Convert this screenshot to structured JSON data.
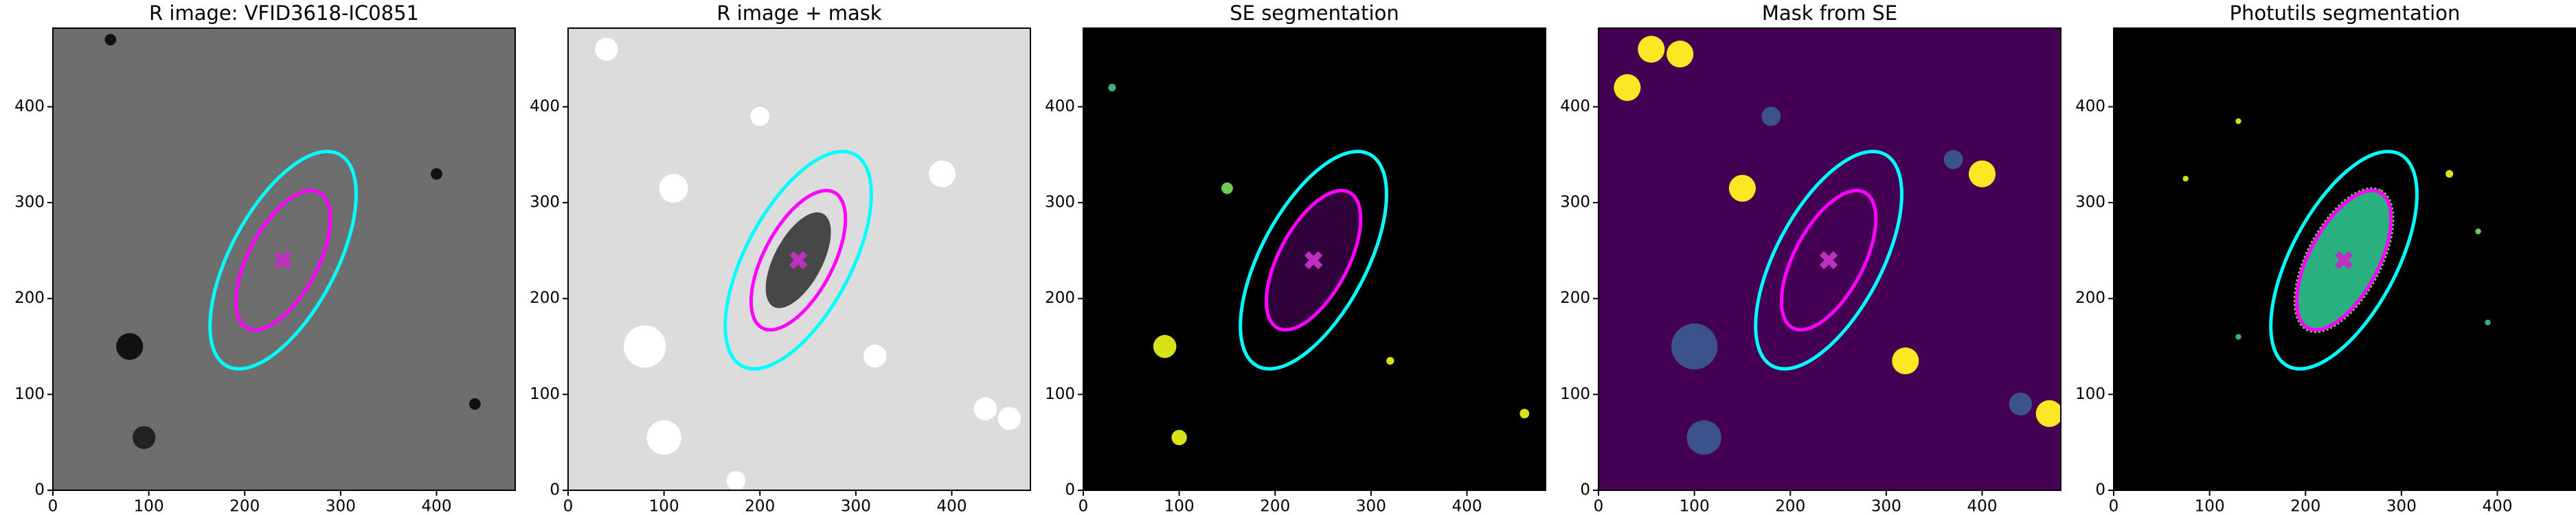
{
  "chart_data": [
    {
      "type": "image",
      "title": "R image: VFID3618-IC0851",
      "background": "#6e6e6e",
      "xlim": [
        0,
        482
      ],
      "ylim": [
        0,
        482
      ],
      "xticks": [
        0,
        100,
        200,
        300,
        400
      ],
      "yticks": [
        0,
        100,
        200,
        300,
        400
      ],
      "ellipses": [
        {
          "cx": 240,
          "cy": 240,
          "a": 125,
          "b": 55,
          "angle": 62,
          "color": "#00ffff"
        },
        {
          "cx": 240,
          "cy": 240,
          "a": 80,
          "b": 36,
          "angle": 62,
          "color": "#ff00ff"
        }
      ],
      "center": {
        "x": 240,
        "y": 240,
        "color": "#c030c0"
      }
    },
    {
      "type": "image",
      "title": "R image + mask",
      "background": "#dcdcdc",
      "xlim": [
        0,
        482
      ],
      "ylim": [
        0,
        482
      ],
      "xticks": [
        0,
        100,
        200,
        300,
        400
      ],
      "yticks": [
        0,
        100,
        200,
        300,
        400
      ],
      "ellipses": [
        {
          "cx": 240,
          "cy": 240,
          "a": 125,
          "b": 55,
          "angle": 62,
          "color": "#00ffff"
        },
        {
          "cx": 240,
          "cy": 240,
          "a": 80,
          "b": 36,
          "angle": 62,
          "color": "#ff00ff"
        }
      ],
      "center": {
        "x": 240,
        "y": 240,
        "color": "#c030c0"
      }
    },
    {
      "type": "image",
      "title": "SE segmentation",
      "background": "#000000",
      "xlim": [
        0,
        482
      ],
      "ylim": [
        0,
        482
      ],
      "xticks": [
        0,
        100,
        200,
        300,
        400
      ],
      "yticks": [
        0,
        100,
        200,
        300,
        400
      ],
      "ellipses": [
        {
          "cx": 240,
          "cy": 240,
          "a": 125,
          "b": 55,
          "angle": 62,
          "color": "#00ffff"
        },
        {
          "cx": 240,
          "cy": 240,
          "a": 80,
          "b": 36,
          "angle": 62,
          "color": "#ff00ff"
        }
      ],
      "center": {
        "x": 240,
        "y": 240,
        "color": "#c030c0"
      }
    },
    {
      "type": "image",
      "title": "Mask from SE",
      "background": "#440154",
      "xlim": [
        0,
        482
      ],
      "ylim": [
        0,
        482
      ],
      "xticks": [
        0,
        100,
        200,
        300,
        400
      ],
      "yticks": [
        0,
        100,
        200,
        300,
        400
      ],
      "ellipses": [
        {
          "cx": 240,
          "cy": 240,
          "a": 125,
          "b": 55,
          "angle": 62,
          "color": "#00ffff"
        },
        {
          "cx": 240,
          "cy": 240,
          "a": 80,
          "b": 36,
          "angle": 62,
          "color": "#ff00ff"
        }
      ],
      "center": {
        "x": 240,
        "y": 240,
        "color": "#c030c0"
      }
    },
    {
      "type": "image",
      "title": "Photutils segmentation",
      "background": "#000000",
      "xlim": [
        0,
        482
      ],
      "ylim": [
        0,
        482
      ],
      "xticks": [
        0,
        100,
        200,
        300,
        400
      ],
      "yticks": [
        0,
        100,
        200,
        300,
        400
      ],
      "ellipses": [
        {
          "cx": 240,
          "cy": 240,
          "a": 125,
          "b": 55,
          "angle": 62,
          "color": "#00ffff"
        },
        {
          "cx": 240,
          "cy": 240,
          "a": 80,
          "b": 36,
          "angle": 62,
          "color": "#ff00ff"
        }
      ],
      "center": {
        "x": 240,
        "y": 240,
        "color": "#c030c0"
      }
    }
  ]
}
